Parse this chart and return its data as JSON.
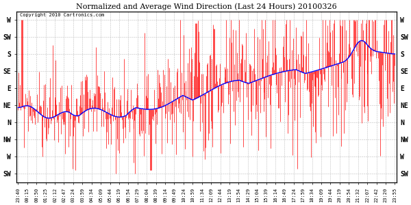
{
  "title": "Normalized and Average Wind Direction (Last 24 Hours) 20100326",
  "copyright": "Copyright 2010 Cartronics.com",
  "background_color": "#ffffff",
  "plot_bg_color": "#ffffff",
  "grid_color": "#bbbbbb",
  "red_color": "#ff0000",
  "blue_color": "#0000ff",
  "ytick_labels": [
    "W",
    "SW",
    "S",
    "SE",
    "E",
    "NE",
    "N",
    "NW",
    "W",
    "SW"
  ],
  "ytick_values": [
    10,
    9,
    8,
    7,
    6,
    5,
    4,
    3,
    2,
    1
  ],
  "ylim": [
    0.5,
    10.5
  ],
  "xtick_labels": [
    "23:40",
    "00:15",
    "00:50",
    "01:25",
    "02:12",
    "02:47",
    "03:24",
    "03:59",
    "04:34",
    "05:09",
    "05:44",
    "06:19",
    "06:54",
    "07:29",
    "08:04",
    "08:39",
    "09:14",
    "09:49",
    "10:24",
    "10:59",
    "11:34",
    "12:09",
    "12:44",
    "13:19",
    "13:54",
    "14:29",
    "15:04",
    "15:39",
    "16:14",
    "16:49",
    "17:24",
    "17:59",
    "18:34",
    "19:09",
    "19:44",
    "20:19",
    "20:54",
    "21:32",
    "22:07",
    "22:42",
    "23:20",
    "23:55"
  ],
  "n_points": 580,
  "seed": 99
}
